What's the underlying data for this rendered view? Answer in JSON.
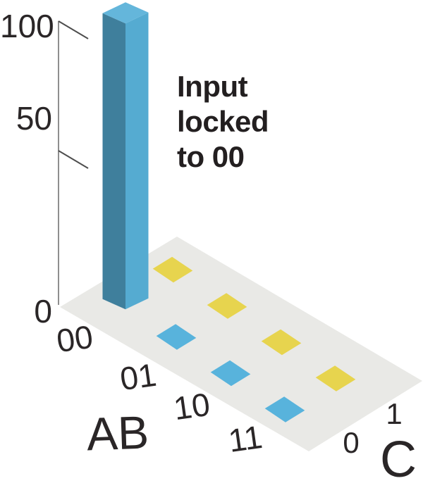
{
  "annotation": {
    "lines": [
      "Input",
      "locked",
      "to 00"
    ]
  },
  "chart_data": {
    "type": "bar",
    "projection": "isometric-3d",
    "description_visible_text_only": "3D probability histogram: single bar at AB=00, C=0 reaching 100; all other outcomes are flat zero markers",
    "z_axis": {
      "range": [
        0,
        100
      ],
      "ticks": [
        "100",
        "50",
        "0"
      ]
    },
    "row_axis": {
      "label": "AB",
      "categories": [
        "00",
        "01",
        "10",
        "11"
      ]
    },
    "col_axis": {
      "label": "C",
      "categories": [
        "0",
        "1"
      ]
    },
    "values": [
      [
        100,
        0
      ],
      [
        0,
        0
      ],
      [
        0,
        0
      ],
      [
        0,
        0
      ]
    ],
    "annotation": "Input locked to 00",
    "legend": null,
    "grid": false,
    "colors": {
      "bar_left_face": "#3f7f9c",
      "bar_right_face": "#55abd1",
      "bar_top_face": "#64b6db",
      "marker_c0": "#58b3dc",
      "marker_c1": "#e7d44e",
      "floor": "#e9e9e6",
      "axis_line": "#8e8e8e",
      "axis_tick": "#4d4d4d",
      "text": "#2a2627",
      "annotation_text": "#231f20"
    }
  }
}
